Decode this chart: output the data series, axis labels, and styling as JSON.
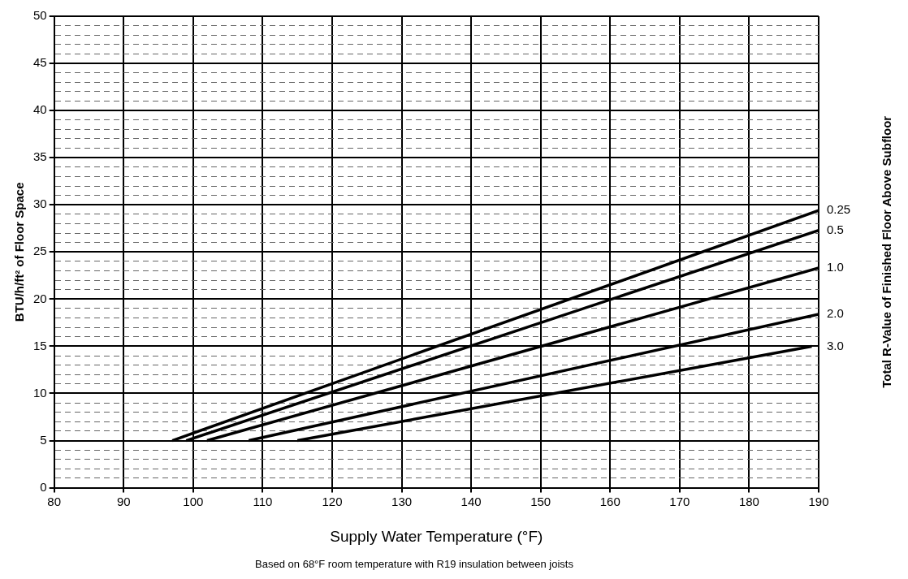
{
  "chart_data": {
    "type": "line",
    "xlabel": "Supply Water Temperature (°F)",
    "ylabel": "BTU/h/ft² of Floor Space",
    "y2label": "Total R-Value of Finished Floor Above Subfloor",
    "annotations": [
      "Based on 68°F room temperature with R19 insulation between joists"
    ],
    "xlim": [
      80,
      190
    ],
    "xticks": [
      80,
      90,
      100,
      110,
      120,
      130,
      140,
      150,
      160,
      170,
      180,
      190
    ],
    "ylim": [
      0,
      50
    ],
    "yticks": [
      0,
      {
        "value": 1,
        "label": null
      },
      {
        "value": 2,
        "label": null
      },
      {
        "value": 3,
        "label": null
      },
      {
        "value": 4,
        "label": null
      },
      5,
      {
        "value": 6,
        "label": null
      },
      {
        "value": 7,
        "label": null
      },
      {
        "value": 8,
        "label": null
      },
      {
        "value": 9,
        "label": null
      },
      10,
      {
        "value": 11,
        "label": null
      },
      {
        "value": 12,
        "label": null
      },
      {
        "value": 13,
        "label": null
      },
      {
        "value": 14,
        "label": null
      },
      15,
      {
        "value": 16,
        "label": null
      },
      {
        "value": 17,
        "label": null
      },
      {
        "value": 18,
        "label": null
      },
      {
        "value": 19,
        "label": null
      },
      20,
      {
        "value": 21,
        "label": null
      },
      {
        "value": 22,
        "label": null
      },
      {
        "value": 23,
        "label": null
      },
      {
        "value": 24,
        "label": null
      },
      25,
      {
        "value": 26,
        "label": null
      },
      {
        "value": 27,
        "label": null
      },
      {
        "value": 28,
        "label": null
      },
      {
        "value": 29,
        "label": null
      },
      30,
      {
        "value": 31,
        "label": null
      },
      {
        "value": 32,
        "label": null
      },
      {
        "value": 33,
        "label": null
      },
      {
        "value": 34,
        "label": null
      },
      35,
      {
        "value": 36,
        "label": null
      },
      {
        "value": 37,
        "label": null
      },
      {
        "value": 38,
        "label": null
      },
      {
        "value": 39,
        "label": null
      },
      40,
      {
        "value": 41,
        "label": null
      },
      {
        "value": 42,
        "label": null
      },
      {
        "value": 43,
        "label": null
      },
      {
        "value": 44,
        "label": null
      },
      45,
      {
        "value": 46,
        "label": null
      },
      {
        "value": 47,
        "label": null
      },
      {
        "value": 48,
        "label": null
      },
      {
        "value": 49,
        "label": null
      },
      50
    ],
    "grid": true,
    "legend": false,
    "marker": "none",
    "line_style": "solid",
    "series": [
      {
        "name": "0.25",
        "color": "#000000",
        "x": [
          97,
          190
        ],
        "values": [
          5,
          29.4
        ]
      },
      {
        "name": "0.5",
        "color": "#000000",
        "x": [
          99,
          190
        ],
        "values": [
          5,
          27.3
        ]
      },
      {
        "name": "1.0",
        "color": "#000000",
        "x": [
          102,
          190
        ],
        "values": [
          5,
          23.3
        ]
      },
      {
        "name": "2.0",
        "color": "#000000",
        "x": [
          108,
          190
        ],
        "values": [
          5,
          18.4
        ]
      },
      {
        "name": "3.0",
        "color": "#000000",
        "x": [
          115,
          189
        ],
        "values": [
          5,
          15
        ]
      }
    ]
  }
}
